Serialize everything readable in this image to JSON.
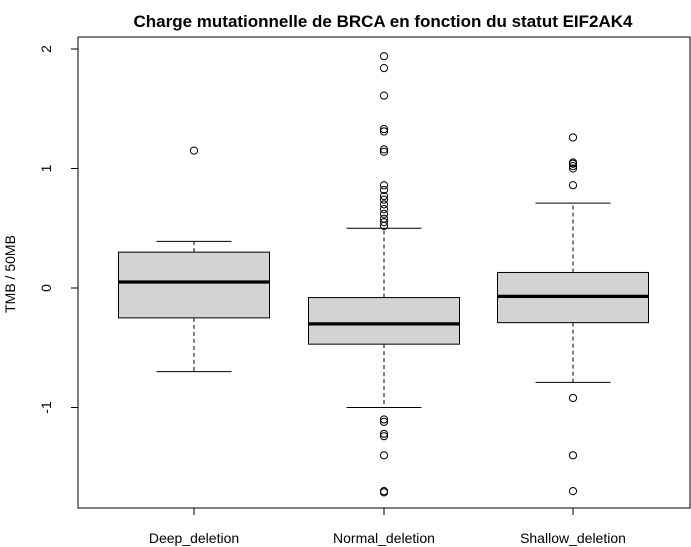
{
  "chart_data": {
    "type": "boxplot",
    "title": "Charge mutationnelle de BRCA en fonction du statut EIF2AK4",
    "xlabel": "",
    "ylabel": "TMB / 50MB",
    "ylim": [
      -1.85,
      2.05
    ],
    "yticks": [
      -1,
      0,
      1,
      2
    ],
    "ytick_labels": [
      "-1",
      "0",
      "1",
      "2"
    ],
    "categories": [
      "Deep_deletion",
      "Normal_deletion",
      "Shallow_deletion"
    ],
    "grid": false,
    "legend": "none",
    "colors": {
      "box_fill": "#d3d3d3",
      "stroke": "#000000",
      "background": "#ffffff"
    },
    "boxes": [
      {
        "category": "Deep_deletion",
        "whisker_low": -0.7,
        "q1": -0.25,
        "median": 0.05,
        "q3": 0.3,
        "whisker_high": 0.39,
        "outliers": [
          1.15
        ]
      },
      {
        "category": "Normal_deletion",
        "whisker_low": -1.0,
        "q1": -0.47,
        "median": -0.3,
        "q3": -0.08,
        "whisker_high": 0.5,
        "outliers": [
          0.52,
          0.55,
          0.58,
          0.62,
          0.66,
          0.7,
          0.74,
          0.77,
          0.82,
          0.86,
          1.14,
          1.16,
          1.31,
          1.33,
          1.61,
          1.84,
          1.94,
          -1.1,
          -1.12,
          -1.22,
          -1.24,
          -1.4,
          -1.7,
          -1.71
        ]
      },
      {
        "category": "Shallow_deletion",
        "whisker_low": -0.79,
        "q1": -0.29,
        "median": -0.07,
        "q3": 0.13,
        "whisker_high": 0.71,
        "outliers": [
          0.86,
          1.0,
          1.02,
          1.04,
          1.05,
          1.26,
          -0.92,
          -1.4,
          -1.7
        ]
      }
    ]
  }
}
